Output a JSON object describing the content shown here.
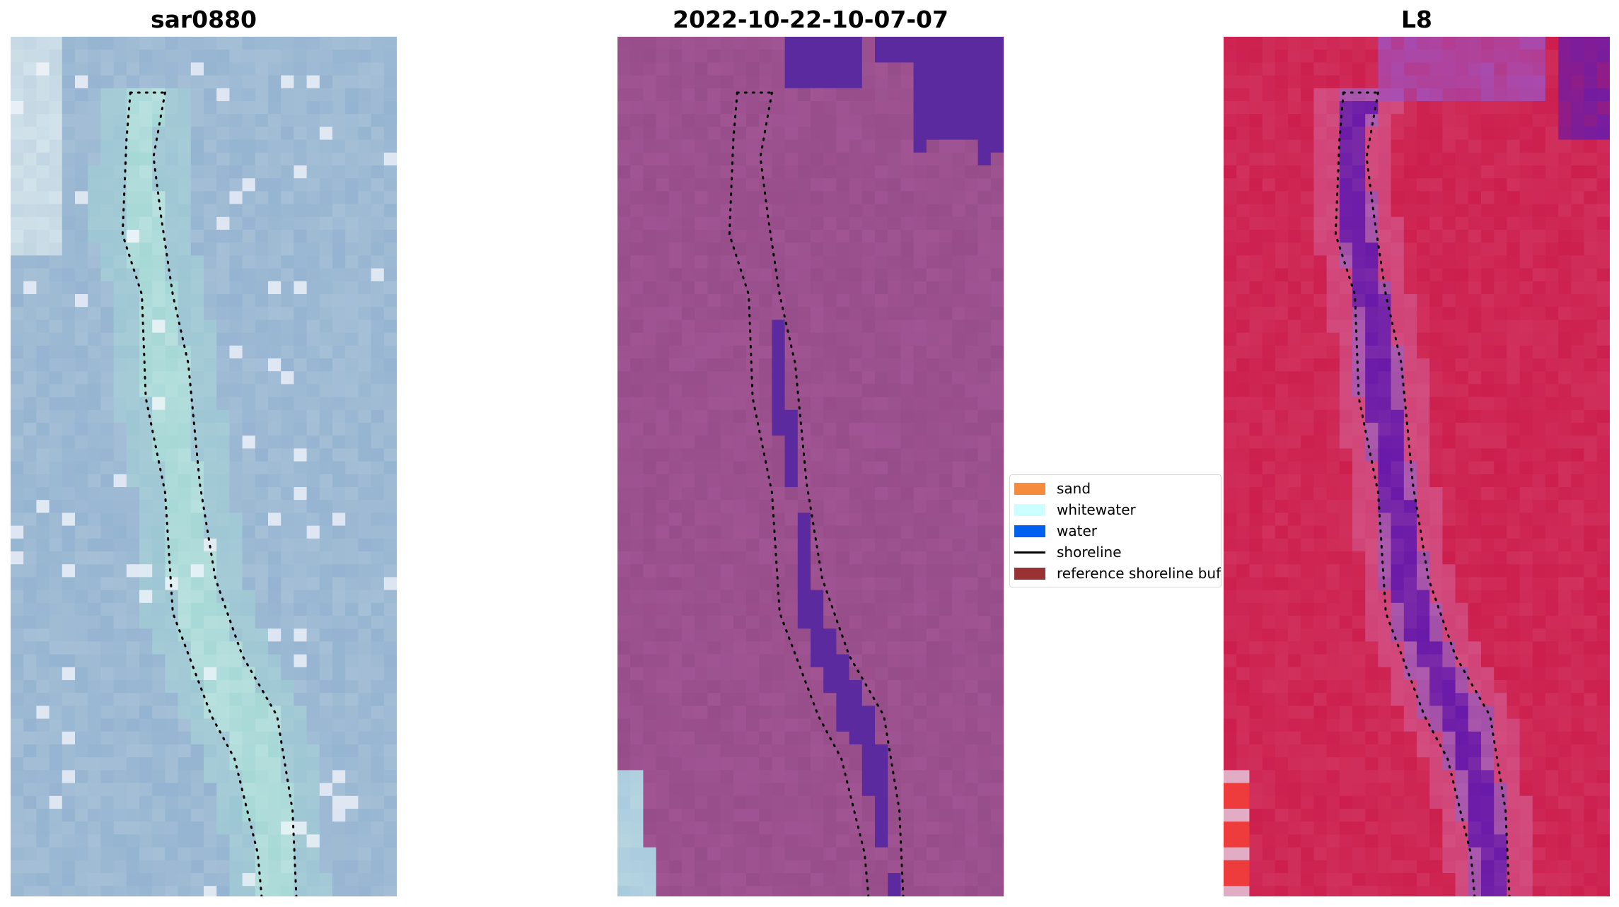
{
  "chart_data": [
    {
      "type": "image",
      "title": "sar0880",
      "colors": {
        "base": "#a5bfd6",
        "water_channel": "#a6d8d6",
        "highlight": "#eef8f6"
      },
      "overlay": "shoreline"
    },
    {
      "type": "image",
      "title": "2022-10-22-10-07-07",
      "colors": {
        "base": "#974d8a",
        "water": "#5a2a9e",
        "corner": "#b6d4e0"
      },
      "overlay": "shoreline"
    },
    {
      "type": "image",
      "title": "L8",
      "colors": {
        "base": "#cc1f4e",
        "channel": "#a24fa8",
        "water": "#6a1aa8",
        "corner": "#ee3b3b"
      },
      "overlay": "shoreline"
    }
  ],
  "legend": {
    "placement": "center, between second and third panels",
    "items": [
      {
        "label": "sand",
        "color": "#f58b3c",
        "kind": "patch"
      },
      {
        "label": "whitewater",
        "color": "#ccffff",
        "kind": "patch"
      },
      {
        "label": "water",
        "color": "#0060f0",
        "kind": "patch"
      },
      {
        "label": "shoreline",
        "color": "#000000",
        "kind": "line"
      },
      {
        "label": "reference shoreline buffer",
        "color": "#993333",
        "kind": "patch"
      }
    ]
  }
}
